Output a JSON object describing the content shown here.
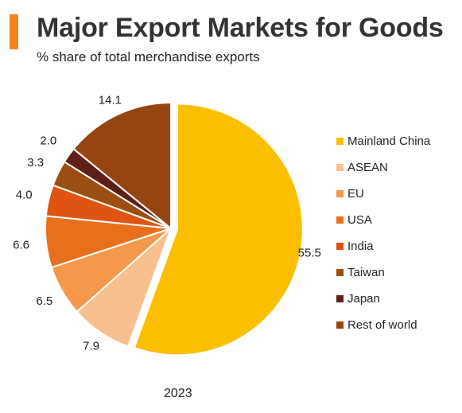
{
  "header": {
    "title": "Major Export Markets for Goods",
    "subtitle": "% share of total merchandise exports",
    "accent_color": "#f58220"
  },
  "chart_data": {
    "type": "pie",
    "categories": [
      "Mainland China",
      "ASEAN",
      "EU",
      "USA",
      "India",
      "Taiwan",
      "Japan",
      "Rest of world"
    ],
    "values": [
      55.5,
      7.9,
      6.5,
      6.6,
      4.0,
      3.3,
      2.0,
      14.1
    ],
    "value_labels": [
      "55.5",
      "7.9",
      "6.5",
      "6.6",
      "4.0",
      "3.3",
      "2.0",
      "14.1"
    ],
    "colors": [
      "#fbbf00",
      "#f9c08f",
      "#f5984a",
      "#e8701c",
      "#e05411",
      "#9b4f12",
      "#5e1f17",
      "#964510"
    ],
    "exploded": [
      "Mainland China"
    ],
    "start_angle": "12 o'clock, clockwise",
    "legend": "right",
    "xlabel": "2023"
  }
}
